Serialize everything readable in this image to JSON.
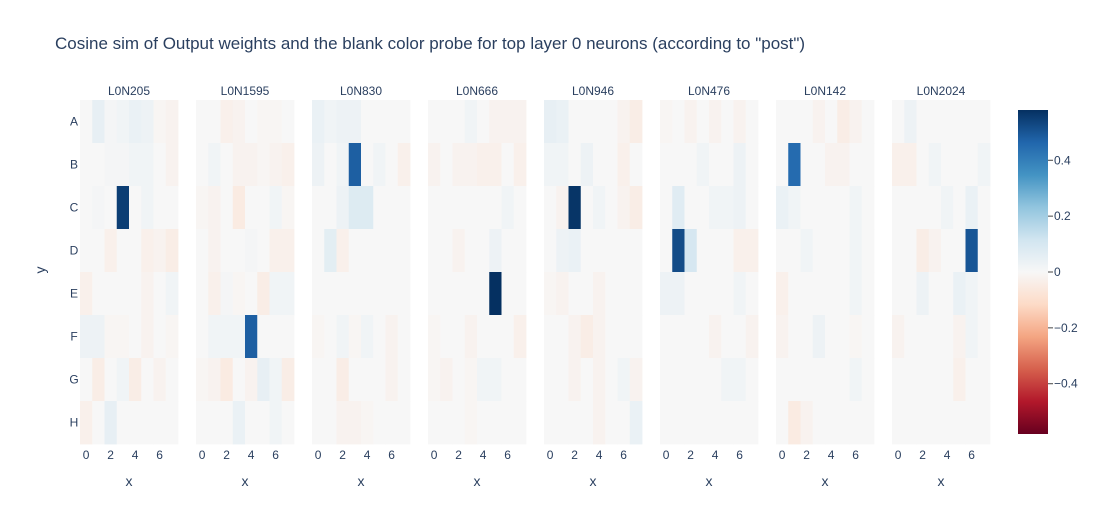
{
  "chart_data": {
    "type": "heatmap",
    "title": "Cosine sim of Output weights and the blank color probe for top layer 0 neurons (according to \"post\")",
    "xlabel": "x",
    "ylabel": "y",
    "x_tick_labels": [
      "0",
      "2",
      "4",
      "6"
    ],
    "y_categories": [
      "A",
      "B",
      "C",
      "D",
      "E",
      "F",
      "G",
      "H"
    ],
    "colorscale": "RdBu",
    "zmin": -0.58,
    "zmax": 0.58,
    "colorbar": {
      "ticks": [
        0.4,
        0.2,
        0,
        -0.2,
        -0.4
      ],
      "tick_labels": [
        "0.4",
        "0.2",
        "0",
        "−0.2",
        "−0.4"
      ]
    },
    "panels": [
      {
        "name": "L0N205",
        "z": [
          [
            0.0,
            0.05,
            0.01,
            0.02,
            0.04,
            0.03,
            -0.01,
            -0.02
          ],
          [
            0.0,
            0.0,
            0.01,
            0.01,
            0.02,
            0.02,
            0.0,
            -0.02
          ],
          [
            0.0,
            0.01,
            0.0,
            0.55,
            0.0,
            0.02,
            0.0,
            0.0
          ],
          [
            0.0,
            0.0,
            -0.03,
            0.0,
            0.0,
            -0.03,
            -0.02,
            -0.04
          ],
          [
            -0.03,
            0.0,
            0.0,
            0.0,
            0.0,
            -0.02,
            0.0,
            0.02
          ],
          [
            0.03,
            0.03,
            -0.01,
            -0.01,
            0.0,
            -0.02,
            0.0,
            -0.01
          ],
          [
            0.0,
            -0.04,
            0.0,
            0.02,
            -0.04,
            0.0,
            -0.02,
            0.0
          ],
          [
            -0.03,
            0.0,
            0.05,
            0.0,
            0.0,
            0.0,
            0.0,
            0.0
          ]
        ]
      },
      {
        "name": "L0N1595",
        "z": [
          [
            0.0,
            0.0,
            -0.03,
            -0.02,
            0.0,
            -0.01,
            -0.01,
            0.0
          ],
          [
            0.0,
            0.02,
            0.0,
            -0.02,
            -0.02,
            -0.01,
            -0.02,
            -0.03
          ],
          [
            -0.01,
            -0.02,
            0.0,
            -0.05,
            0.0,
            0.0,
            0.02,
            -0.01
          ],
          [
            0.0,
            -0.02,
            0.0,
            0.0,
            0.01,
            0.0,
            -0.03,
            -0.03
          ],
          [
            0.0,
            -0.03,
            0.01,
            -0.01,
            0.0,
            -0.04,
            0.02,
            0.02
          ],
          [
            0.0,
            0.02,
            0.02,
            0.02,
            0.48,
            0.0,
            0.0,
            0.0
          ],
          [
            -0.01,
            -0.02,
            -0.05,
            0.0,
            -0.02,
            0.05,
            0.02,
            -0.04
          ],
          [
            0.0,
            0.0,
            0.0,
            0.04,
            0.0,
            0.0,
            0.02,
            0.0
          ]
        ]
      },
      {
        "name": "L0N830",
        "z": [
          [
            0.04,
            0.02,
            0.03,
            0.03,
            0.0,
            0.0,
            0.0,
            0.0
          ],
          [
            0.03,
            0.0,
            0.02,
            0.48,
            0.0,
            0.02,
            0.0,
            -0.03
          ],
          [
            0.0,
            0.0,
            0.03,
            0.08,
            0.08,
            0.0,
            0.0,
            0.0
          ],
          [
            0.0,
            0.06,
            -0.03,
            0.0,
            0.0,
            0.0,
            0.0,
            0.0
          ],
          [
            0.0,
            0.0,
            0.0,
            0.0,
            0.0,
            0.0,
            0.0,
            0.0
          ],
          [
            -0.01,
            0.0,
            0.02,
            -0.01,
            0.02,
            0.0,
            -0.02,
            0.0
          ],
          [
            0.0,
            0.0,
            -0.04,
            0.0,
            0.0,
            0.0,
            -0.02,
            0.0
          ],
          [
            0.0,
            0.0,
            -0.02,
            -0.02,
            -0.01,
            0.0,
            0.0,
            0.0
          ]
        ]
      },
      {
        "name": "L0N666",
        "z": [
          [
            0.0,
            0.0,
            0.0,
            0.02,
            0.0,
            -0.02,
            -0.02,
            -0.02
          ],
          [
            -0.02,
            0.0,
            -0.02,
            -0.02,
            -0.03,
            -0.03,
            0.0,
            -0.03
          ],
          [
            0.0,
            0.0,
            0.0,
            0.0,
            0.0,
            0.0,
            0.02,
            0.0
          ],
          [
            0.0,
            0.0,
            -0.02,
            0.0,
            0.0,
            0.03,
            0.0,
            0.0
          ],
          [
            0.0,
            0.0,
            0.0,
            0.0,
            0.0,
            0.58,
            0.0,
            0.0
          ],
          [
            -0.01,
            0.0,
            0.0,
            -0.02,
            0.0,
            0.0,
            0.0,
            -0.03
          ],
          [
            -0.01,
            -0.02,
            0.0,
            -0.01,
            0.02,
            0.02,
            0.0,
            0.0
          ],
          [
            0.0,
            0.0,
            0.0,
            -0.01,
            0.0,
            0.0,
            0.0,
            0.0
          ]
        ]
      },
      {
        "name": "L0N946",
        "z": [
          [
            0.05,
            0.04,
            0.0,
            0.0,
            0.0,
            0.0,
            -0.02,
            -0.04
          ],
          [
            0.02,
            0.02,
            0.0,
            0.03,
            0.0,
            0.0,
            -0.03,
            0.0
          ],
          [
            0.0,
            -0.02,
            0.57,
            0.0,
            0.02,
            0.0,
            -0.02,
            -0.04
          ],
          [
            0.0,
            0.03,
            0.04,
            0.0,
            0.0,
            0.0,
            0.0,
            0.0
          ],
          [
            -0.01,
            -0.02,
            0.0,
            0.0,
            -0.02,
            0.0,
            0.0,
            0.0
          ],
          [
            0.0,
            0.0,
            -0.02,
            -0.04,
            -0.02,
            0.0,
            0.0,
            0.0
          ],
          [
            0.0,
            0.0,
            -0.02,
            0.0,
            -0.02,
            0.0,
            0.02,
            -0.02
          ],
          [
            0.0,
            0.0,
            0.0,
            0.0,
            -0.02,
            0.0,
            0.0,
            0.04
          ]
        ]
      },
      {
        "name": "L0N476",
        "z": [
          [
            -0.01,
            0.0,
            -0.02,
            0.0,
            -0.02,
            0.0,
            -0.02,
            0.0
          ],
          [
            0.0,
            0.0,
            0.0,
            0.02,
            0.0,
            0.0,
            0.03,
            0.0
          ],
          [
            0.0,
            0.07,
            0.0,
            0.0,
            0.02,
            0.02,
            0.03,
            0.0
          ],
          [
            0.0,
            0.52,
            0.1,
            0.0,
            0.0,
            0.0,
            -0.03,
            -0.03
          ],
          [
            0.03,
            0.03,
            0.0,
            0.0,
            0.0,
            0.0,
            0.02,
            0.0
          ],
          [
            0.0,
            0.0,
            0.0,
            0.0,
            -0.02,
            0.0,
            0.0,
            -0.02
          ],
          [
            0.0,
            0.0,
            0.0,
            0.0,
            0.0,
            0.02,
            0.02,
            0.0
          ],
          [
            0.0,
            0.0,
            0.0,
            0.0,
            0.0,
            0.0,
            0.0,
            0.0
          ]
        ]
      },
      {
        "name": "L0N142",
        "z": [
          [
            0.0,
            0.0,
            0.0,
            -0.02,
            0.0,
            -0.04,
            -0.02,
            0.0
          ],
          [
            0.0,
            0.45,
            0.0,
            0.0,
            -0.02,
            -0.02,
            0.0,
            0.0
          ],
          [
            0.04,
            0.02,
            0.0,
            0.0,
            0.0,
            0.0,
            0.02,
            0.0
          ],
          [
            0.0,
            0.0,
            0.02,
            0.0,
            0.0,
            0.0,
            0.02,
            0.0
          ],
          [
            -0.03,
            0.0,
            0.0,
            0.0,
            0.0,
            0.0,
            0.02,
            0.0
          ],
          [
            -0.02,
            0.0,
            0.0,
            0.03,
            0.0,
            0.0,
            -0.01,
            0.0
          ],
          [
            0.0,
            0.0,
            0.0,
            0.0,
            0.0,
            0.0,
            0.02,
            0.0
          ],
          [
            0.0,
            -0.05,
            -0.02,
            0.0,
            0.0,
            0.0,
            0.0,
            0.0
          ]
        ]
      },
      {
        "name": "L0N2024",
        "z": [
          [
            0.0,
            0.03,
            0.0,
            0.0,
            0.0,
            0.0,
            0.0,
            0.0
          ],
          [
            -0.03,
            -0.03,
            0.0,
            0.02,
            0.0,
            0.0,
            0.0,
            0.02
          ],
          [
            0.0,
            0.0,
            0.0,
            0.0,
            0.02,
            0.0,
            0.04,
            0.0
          ],
          [
            0.0,
            0.0,
            -0.04,
            -0.02,
            0.0,
            0.0,
            0.5,
            0.0
          ],
          [
            0.0,
            0.0,
            0.03,
            0.0,
            0.0,
            0.04,
            0.02,
            0.0
          ],
          [
            -0.02,
            0.0,
            0.0,
            0.0,
            0.0,
            -0.02,
            0.02,
            0.0
          ],
          [
            0.0,
            0.0,
            0.0,
            0.0,
            0.0,
            -0.03,
            0.0,
            0.0
          ],
          [
            0.0,
            0.0,
            0.0,
            0.0,
            0.0,
            0.0,
            0.0,
            0.0
          ]
        ]
      }
    ]
  }
}
